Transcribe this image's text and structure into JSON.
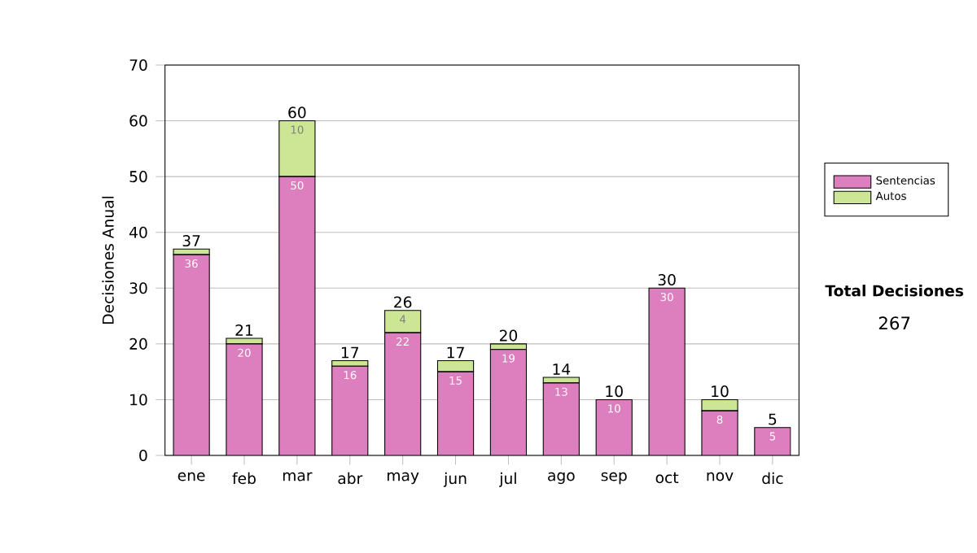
{
  "chart_data": {
    "type": "bar",
    "stacked": true,
    "ylabel": "Decisiones Anual",
    "categories": [
      "ene",
      "feb",
      "mar",
      "abr",
      "may",
      "jun",
      "jul",
      "ago",
      "sep",
      "oct",
      "nov",
      "dic"
    ],
    "series": [
      {
        "name": "Sentencias",
        "color": "#dd7fbf",
        "values": [
          36,
          20,
          50,
          16,
          22,
          15,
          19,
          13,
          10,
          30,
          8,
          5
        ],
        "value_labels": [
          "36",
          "20",
          "50",
          "16",
          "22",
          "15",
          "19",
          "13",
          "10",
          "30",
          "8",
          "5"
        ]
      },
      {
        "name": "Autos",
        "color": "#cce696",
        "values": [
          1,
          1,
          10,
          1,
          4,
          2,
          1,
          1,
          0,
          0,
          2,
          0
        ],
        "value_labels": [
          null,
          null,
          "10",
          null,
          "4",
          null,
          null,
          null,
          null,
          null,
          null,
          null
        ]
      }
    ],
    "totals": [
      "37",
      "21",
      "60",
      "17",
      "26",
      "17",
      "20",
      "14",
      "10",
      "30",
      "10",
      "5"
    ],
    "ylim": [
      0,
      70
    ],
    "yticks": [
      0,
      10,
      20,
      30,
      40,
      50,
      60,
      70
    ],
    "grid": "y",
    "legend": "right",
    "annotations": [
      "Total Decisiones",
      "267"
    ]
  }
}
